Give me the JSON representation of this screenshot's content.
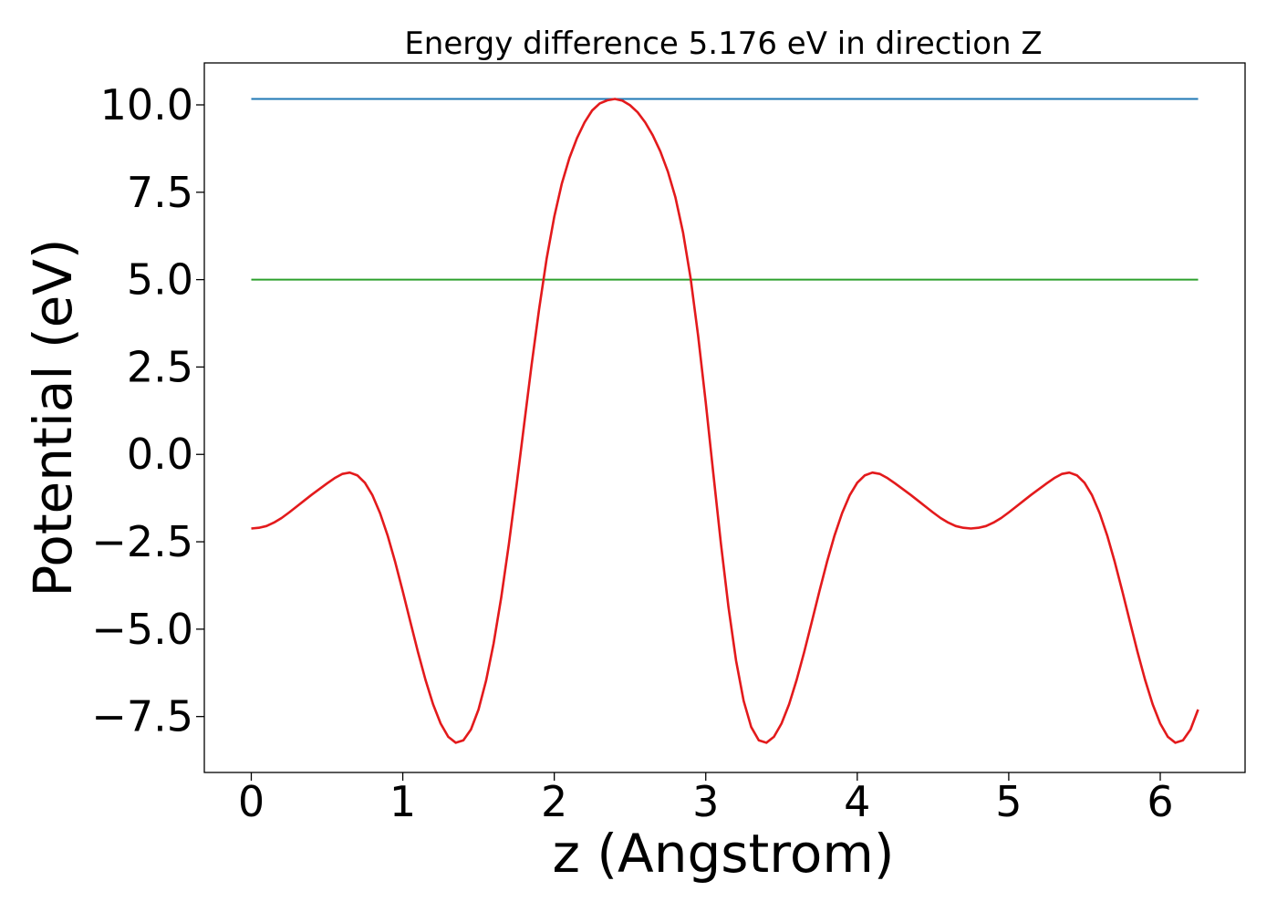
{
  "chart_data": {
    "type": "line",
    "title": "Energy difference 5.176 eV in direction Z",
    "xlabel": "z (Angstrom)",
    "ylabel": "Potential (eV)",
    "xlim": [
      -0.31,
      6.56
    ],
    "ylim": [
      -9.1,
      11.2
    ],
    "xticks": [
      0,
      1,
      2,
      3,
      4,
      5,
      6
    ],
    "xtick_labels": [
      "0",
      "1",
      "2",
      "3",
      "4",
      "5",
      "6"
    ],
    "yticks": [
      10.0,
      7.5,
      5.0,
      2.5,
      0.0,
      -2.5,
      -5.0,
      -7.5
    ],
    "ytick_labels": [
      "10.0",
      "7.5",
      "5.0",
      "2.5",
      "0.0",
      "−2.5",
      "−5.0",
      "−7.5"
    ],
    "grid": false,
    "series": [
      {
        "color": "#1f77b4",
        "x": [
          0,
          6.25
        ],
        "y": [
          10.17,
          10.17
        ]
      },
      {
        "color": "#2ca02c",
        "x": [
          0,
          6.25
        ],
        "y": [
          5.0,
          5.0
        ]
      },
      {
        "color": "#e31a1c",
        "x": [
          0,
          0.05,
          0.1,
          0.15,
          0.2,
          0.25,
          0.3,
          0.35,
          0.4,
          0.45,
          0.5,
          0.55,
          0.6,
          0.65,
          0.7,
          0.75,
          0.8,
          0.85,
          0.9,
          0.95,
          1.0,
          1.05,
          1.1,
          1.15,
          1.2,
          1.25,
          1.3,
          1.35,
          1.4,
          1.45,
          1.5,
          1.55,
          1.6,
          1.65,
          1.7,
          1.75,
          1.8,
          1.85,
          1.9,
          1.95,
          2.0,
          2.05,
          2.1,
          2.15,
          2.2,
          2.25,
          2.3,
          2.35,
          2.4,
          2.45,
          2.5,
          2.55,
          2.6,
          2.65,
          2.7,
          2.75,
          2.8,
          2.85,
          2.9,
          2.95,
          3.0,
          3.05,
          3.1,
          3.15,
          3.2,
          3.25,
          3.3,
          3.35,
          3.4,
          3.45,
          3.5,
          3.55,
          3.6,
          3.65,
          3.7,
          3.75,
          3.8,
          3.85,
          3.9,
          3.95,
          4.0,
          4.05,
          4.1,
          4.15,
          4.2,
          4.25,
          4.3,
          4.35,
          4.4,
          4.45,
          4.5,
          4.55,
          4.6,
          4.65,
          4.7,
          4.75,
          4.8,
          4.85,
          4.9,
          4.95,
          5.0,
          5.05,
          5.1,
          5.15,
          5.2,
          5.25,
          5.3,
          5.35,
          5.4,
          5.45,
          5.5,
          5.55,
          5.6,
          5.65,
          5.7,
          5.75,
          5.8,
          5.85,
          5.9,
          5.95,
          6.0,
          6.05,
          6.1,
          6.15,
          6.2,
          6.25
        ],
        "y": [
          -2.12,
          -2.1,
          -2.05,
          -1.95,
          -1.82,
          -1.66,
          -1.49,
          -1.32,
          -1.15,
          -0.99,
          -0.83,
          -0.68,
          -0.56,
          -0.52,
          -0.6,
          -0.81,
          -1.17,
          -1.68,
          -2.32,
          -3.08,
          -3.92,
          -4.79,
          -5.65,
          -6.45,
          -7.15,
          -7.7,
          -8.08,
          -8.25,
          -8.18,
          -7.87,
          -7.3,
          -6.47,
          -5.4,
          -4.09,
          -2.58,
          -0.92,
          0.82,
          2.55,
          4.16,
          5.61,
          6.8,
          7.75,
          8.48,
          9.05,
          9.5,
          9.84,
          10.04,
          10.13,
          10.17,
          10.12,
          9.99,
          9.79,
          9.5,
          9.13,
          8.67,
          8.09,
          7.35,
          6.35,
          5.04,
          3.38,
          1.48,
          -0.55,
          -2.55,
          -4.37,
          -5.9,
          -7.05,
          -7.8,
          -8.18,
          -8.25,
          -8.08,
          -7.7,
          -7.15,
          -6.45,
          -5.65,
          -4.79,
          -3.92,
          -3.08,
          -2.32,
          -1.68,
          -1.17,
          -0.81,
          -0.6,
          -0.52,
          -0.56,
          -0.68,
          -0.83,
          -0.99,
          -1.15,
          -1.32,
          -1.49,
          -1.66,
          -1.82,
          -1.95,
          -2.05,
          -2.1,
          -2.12,
          -2.1,
          -2.05,
          -1.95,
          -1.82,
          -1.66,
          -1.49,
          -1.32,
          -1.15,
          -0.99,
          -0.83,
          -0.68,
          -0.56,
          -0.52,
          -0.6,
          -0.81,
          -1.17,
          -1.68,
          -2.32,
          -3.08,
          -3.92,
          -4.79,
          -5.65,
          -6.45,
          -7.15,
          -7.7,
          -8.08,
          -8.25,
          -8.18,
          -7.87,
          -7.3
        ]
      }
    ]
  }
}
